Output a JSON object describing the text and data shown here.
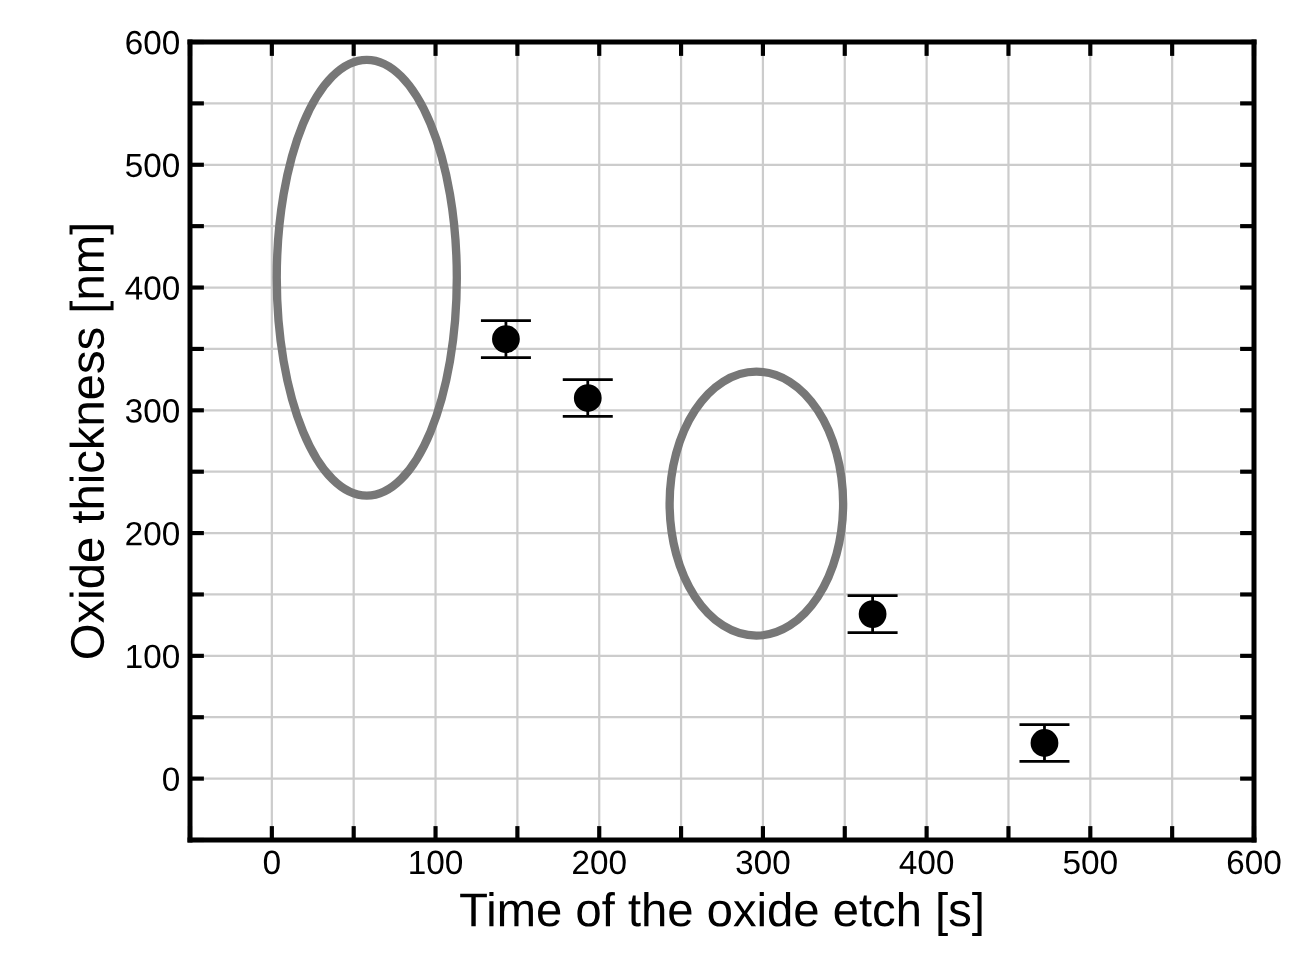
{
  "chart_data": {
    "type": "scatter",
    "xlabel": "Time of the oxide etch [s]",
    "ylabel": "Oxide thickness [nm]",
    "x": [
      143,
      193,
      367,
      472
    ],
    "series": [
      {
        "color": "#000000",
        "values": [
          358,
          310,
          134,
          29
        ],
        "errors": [
          15,
          15,
          15,
          15
        ]
      }
    ],
    "marker": "circle",
    "grid": true,
    "xlim": [
      -50,
      600
    ],
    "ylim": [
      -50,
      600
    ],
    "xticks": [
      {
        "value": -50,
        "label": null
      },
      0,
      {
        "value": 50,
        "label": null
      },
      100,
      {
        "value": 150,
        "label": null
      },
      200,
      {
        "value": 250,
        "label": null
      },
      300,
      {
        "value": 350,
        "label": null
      },
      400,
      {
        "value": 450,
        "label": null
      },
      500,
      {
        "value": 550,
        "label": null
      },
      600
    ],
    "yticks": [
      {
        "value": -50,
        "label": null
      },
      0,
      {
        "value": 50,
        "label": null
      },
      100,
      {
        "value": 150,
        "label": null
      },
      200,
      {
        "value": 250,
        "label": null
      },
      300,
      {
        "value": 350,
        "label": null
      },
      400,
      {
        "value": 450,
        "label": null
      },
      500,
      {
        "value": 550,
        "label": null
      },
      600
    ]
  }
}
